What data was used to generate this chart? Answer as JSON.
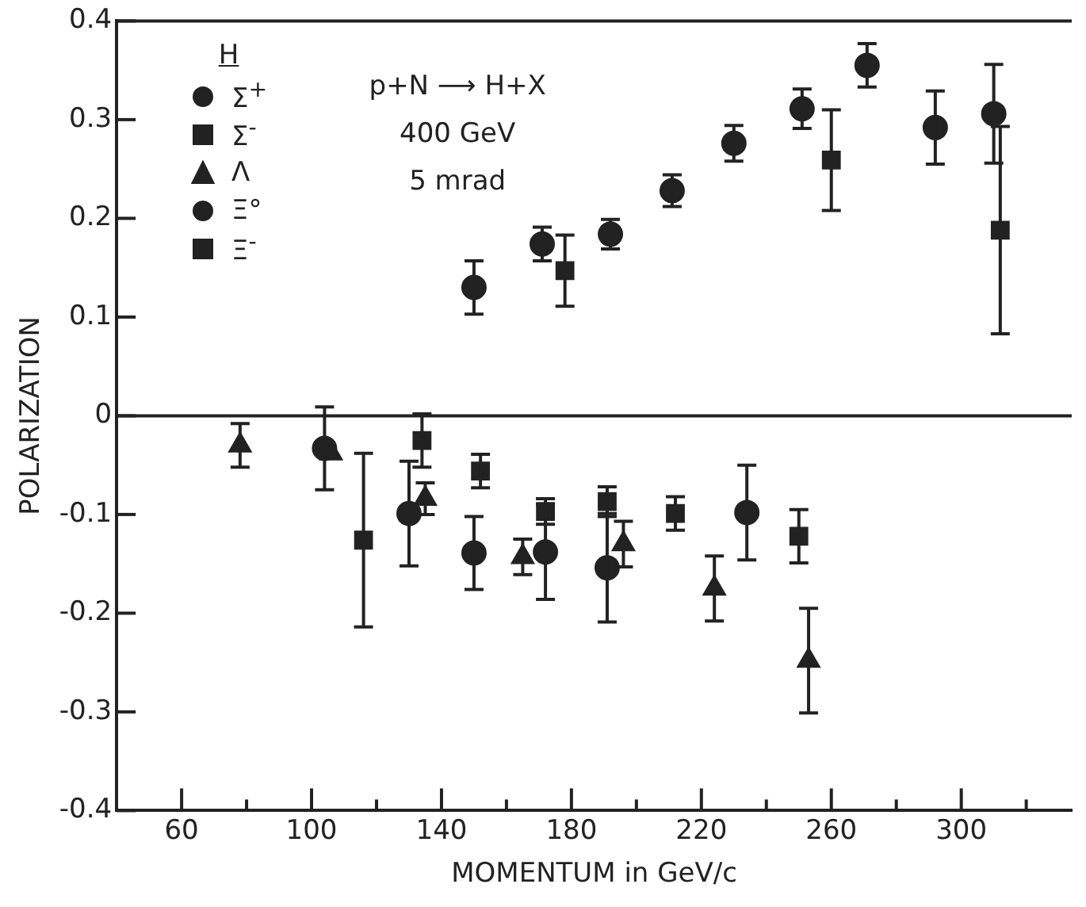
{
  "chart_data": {
    "type": "scatter",
    "xlabel": "MOMENTUM in GeV/c",
    "ylabel": "POLARIZATION",
    "legend_title": "H",
    "legend": "top left",
    "grid": false,
    "annotations": [
      "p+N ⟶ H+X",
      "400 GeV",
      "5 mrad"
    ],
    "xlim": [
      40,
      334
    ],
    "xticks": [
      60,
      {
        "value": 80,
        "label": null
      },
      100,
      {
        "value": 120,
        "label": null
      },
      140,
      {
        "value": 160,
        "label": null
      },
      180,
      {
        "value": 200,
        "label": null
      },
      220,
      {
        "value": 240,
        "label": null
      },
      260,
      {
        "value": 280,
        "label": null
      },
      300,
      {
        "value": 320,
        "label": null
      }
    ],
    "ylim": [
      -0.4,
      0.4
    ],
    "yticks": [
      -0.4,
      -0.3,
      -0.2,
      -0.1,
      0,
      0.1,
      0.2,
      0.3,
      0.4
    ],
    "ref_lines": [
      {
        "axis": "y",
        "value": 0,
        "color": "#222222"
      }
    ],
    "series": [
      {
        "name": "Σ$^{+}$",
        "color": "#222222",
        "marker": "circle",
        "x": [
          150,
          171,
          192,
          211,
          230,
          251,
          271,
          292,
          310
        ],
        "values": [
          0.13,
          0.174,
          0.184,
          0.228,
          0.276,
          0.311,
          0.355,
          0.292,
          0.306
        ],
        "errors": [
          0.027,
          0.017,
          0.015,
          0.016,
          0.018,
          0.02,
          0.022,
          0.037,
          0.05
        ]
      },
      {
        "name": "Σ$^{-}$",
        "color": "#222222",
        "marker": "square",
        "x": [
          178,
          260,
          312
        ],
        "values": [
          0.147,
          0.259,
          0.188
        ],
        "errors": [
          0.036,
          0.051,
          0.105
        ]
      },
      {
        "name": "Λ",
        "color": "#222222",
        "marker": "triangle",
        "x": [
          78,
          106,
          135,
          165,
          196,
          224,
          253
        ],
        "values": [
          -0.03,
          -0.038,
          -0.084,
          -0.143,
          -0.13,
          -0.175,
          -0.248
        ],
        "errors": [
          0.022,
          null,
          0.016,
          0.018,
          0.023,
          0.033,
          0.053
        ]
      },
      {
        "name": "Ξ°",
        "color": "#222222",
        "marker": "circle",
        "x": [
          104,
          130,
          150,
          172,
          191,
          234
        ],
        "values": [
          -0.033,
          -0.099,
          -0.139,
          -0.138,
          -0.154,
          -0.098
        ],
        "errors": [
          0.042,
          0.053,
          0.037,
          0.048,
          0.055,
          0.048
        ]
      },
      {
        "name": "Ξ$^{-}$",
        "color": "#222222",
        "marker": "square",
        "x": [
          116,
          134,
          152,
          172,
          191,
          212,
          250
        ],
        "values": [
          -0.126,
          -0.025,
          -0.056,
          -0.097,
          -0.087,
          -0.099,
          -0.122
        ],
        "errors": [
          0.088,
          0.027,
          0.017,
          0.013,
          0.015,
          0.017,
          0.027
        ]
      }
    ]
  }
}
